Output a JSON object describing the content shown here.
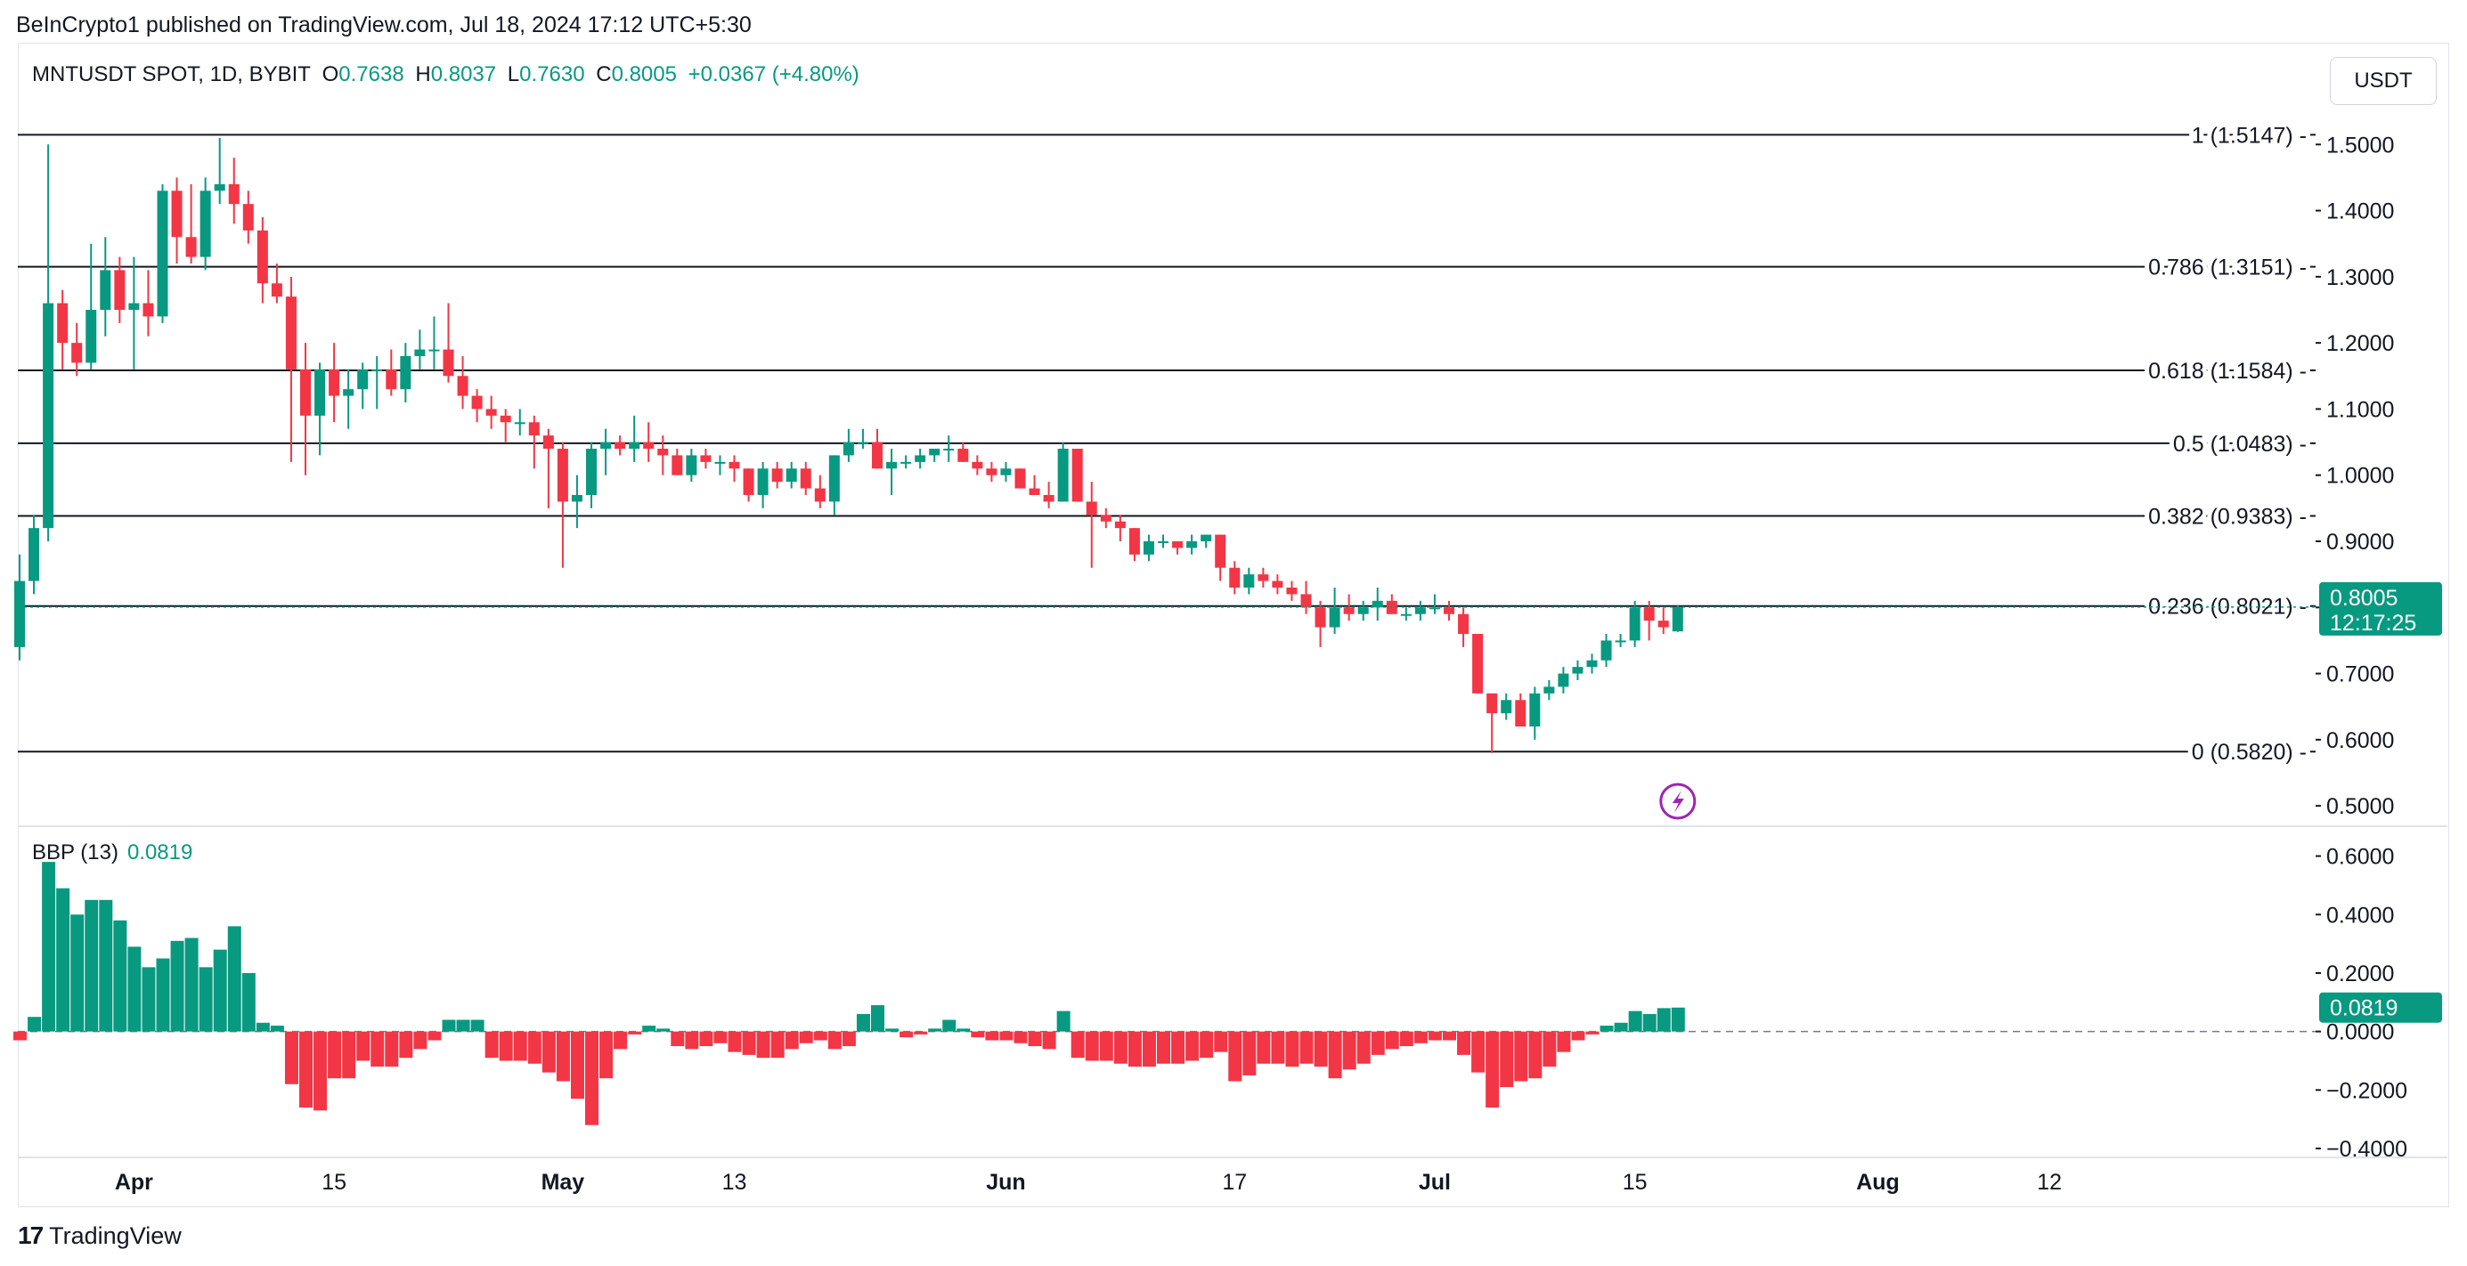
{
  "header": {
    "published": "BeInCrypto1 published on TradingView.com, Jul 18, 2024 17:12 UTC+5:30"
  },
  "currency_button": "USDT",
  "legend": {
    "symbol": "MNTUSDT SPOT, 1D, BYBIT",
    "o_label": "O",
    "o_value": "0.7638",
    "h_label": "H",
    "h_value": "0.8037",
    "l_label": "L",
    "l_value": "0.7630",
    "c_label": "C",
    "c_value": "0.8005",
    "change": "+0.0367 (+4.80%)"
  },
  "indicator_legend": {
    "name": "BBP (13)",
    "value": "0.0819"
  },
  "footer": {
    "brand": "TradingView"
  },
  "colors": {
    "up": "#089981",
    "down": "#f23645",
    "line": "#131722",
    "bolt": "#9c27b0"
  },
  "chart_data": [
    {
      "type": "candlestick",
      "symbol": "MNTUSDT",
      "interval": "1D",
      "exchange": "BYBIT",
      "ylim": [
        0.48,
        1.53
      ],
      "y_ticks": [
        "1.5000",
        "1.4000",
        "1.3000",
        "1.2000",
        "1.1000",
        "1.0000",
        "0.9000",
        "0.8000",
        "0.7000",
        "0.6000",
        "0.5000"
      ],
      "x_ticks": [
        "Apr",
        "15",
        "May",
        "13",
        "Jun",
        "17",
        "Jul",
        "15",
        "Aug",
        "12"
      ],
      "fib_levels": [
        {
          "ratio": "1",
          "price": 1.5147,
          "label": "1 (1.5147)"
        },
        {
          "ratio": "0.786",
          "price": 1.3151,
          "label": "0.786 (1.3151)"
        },
        {
          "ratio": "0.618",
          "price": 1.1584,
          "label": "0.618 (1.1584)"
        },
        {
          "ratio": "0.5",
          "price": 1.0483,
          "label": "0.5 (1.0483)"
        },
        {
          "ratio": "0.382",
          "price": 0.9383,
          "label": "0.382 (0.9383)"
        },
        {
          "ratio": "0.236",
          "price": 0.8021,
          "label": "0.236 (0.8021)"
        },
        {
          "ratio": "0",
          "price": 0.582,
          "label": "0 (0.5820)"
        }
      ],
      "last_price": "0.8005",
      "countdown": "12:17:25",
      "candles_ohlc": [
        [
          0.74,
          0.88,
          0.72,
          0.84
        ],
        [
          0.84,
          0.94,
          0.82,
          0.92
        ],
        [
          0.92,
          1.5,
          0.9,
          1.26
        ],
        [
          1.26,
          1.28,
          1.16,
          1.2
        ],
        [
          1.2,
          1.23,
          1.15,
          1.17
        ],
        [
          1.17,
          1.35,
          1.16,
          1.25
        ],
        [
          1.25,
          1.36,
          1.21,
          1.31
        ],
        [
          1.31,
          1.33,
          1.23,
          1.25
        ],
        [
          1.25,
          1.33,
          1.16,
          1.26
        ],
        [
          1.26,
          1.31,
          1.21,
          1.24
        ],
        [
          1.24,
          1.44,
          1.23,
          1.43
        ],
        [
          1.43,
          1.45,
          1.32,
          1.36
        ],
        [
          1.36,
          1.44,
          1.32,
          1.33
        ],
        [
          1.33,
          1.45,
          1.31,
          1.43
        ],
        [
          1.43,
          1.51,
          1.41,
          1.44
        ],
        [
          1.44,
          1.48,
          1.38,
          1.41
        ],
        [
          1.41,
          1.43,
          1.35,
          1.37
        ],
        [
          1.37,
          1.39,
          1.26,
          1.29
        ],
        [
          1.29,
          1.32,
          1.26,
          1.27
        ],
        [
          1.27,
          1.3,
          1.02,
          1.16
        ],
        [
          1.16,
          1.2,
          1.0,
          1.09
        ],
        [
          1.09,
          1.17,
          1.03,
          1.16
        ],
        [
          1.16,
          1.2,
          1.08,
          1.12
        ],
        [
          1.12,
          1.16,
          1.07,
          1.13
        ],
        [
          1.13,
          1.17,
          1.1,
          1.16
        ],
        [
          1.16,
          1.18,
          1.1,
          1.16
        ],
        [
          1.16,
          1.19,
          1.12,
          1.13
        ],
        [
          1.13,
          1.2,
          1.11,
          1.18
        ],
        [
          1.18,
          1.22,
          1.16,
          1.19
        ],
        [
          1.19,
          1.24,
          1.16,
          1.19
        ],
        [
          1.19,
          1.26,
          1.14,
          1.15
        ],
        [
          1.15,
          1.18,
          1.1,
          1.12
        ],
        [
          1.12,
          1.13,
          1.08,
          1.1
        ],
        [
          1.1,
          1.12,
          1.07,
          1.09
        ],
        [
          1.09,
          1.1,
          1.05,
          1.08
        ],
        [
          1.08,
          1.1,
          1.06,
          1.08
        ],
        [
          1.08,
          1.09,
          1.01,
          1.06
        ],
        [
          1.06,
          1.07,
          0.95,
          1.04
        ],
        [
          1.04,
          1.05,
          0.86,
          0.96
        ],
        [
          0.96,
          1.0,
          0.92,
          0.97
        ],
        [
          0.97,
          1.05,
          0.95,
          1.04
        ],
        [
          1.04,
          1.07,
          1.0,
          1.05
        ],
        [
          1.05,
          1.06,
          1.03,
          1.04
        ],
        [
          1.04,
          1.09,
          1.02,
          1.05
        ],
        [
          1.05,
          1.08,
          1.02,
          1.04
        ],
        [
          1.04,
          1.06,
          1.0,
          1.03
        ],
        [
          1.03,
          1.04,
          1.0,
          1.0
        ],
        [
          1.0,
          1.04,
          0.99,
          1.03
        ],
        [
          1.03,
          1.04,
          1.01,
          1.02
        ],
        [
          1.02,
          1.03,
          1.0,
          1.02
        ],
        [
          1.02,
          1.03,
          0.99,
          1.01
        ],
        [
          1.01,
          1.01,
          0.96,
          0.97
        ],
        [
          0.97,
          1.02,
          0.95,
          1.01
        ],
        [
          1.01,
          1.02,
          0.98,
          0.99
        ],
        [
          0.99,
          1.02,
          0.98,
          1.01
        ],
        [
          1.01,
          1.02,
          0.97,
          0.98
        ],
        [
          0.98,
          1.0,
          0.95,
          0.96
        ],
        [
          0.96,
          1.03,
          0.94,
          1.03
        ],
        [
          1.03,
          1.07,
          1.02,
          1.05
        ],
        [
          1.05,
          1.07,
          1.04,
          1.05
        ],
        [
          1.05,
          1.07,
          1.01,
          1.01
        ],
        [
          1.01,
          1.04,
          0.97,
          1.02
        ],
        [
          1.02,
          1.03,
          1.01,
          1.02
        ],
        [
          1.02,
          1.04,
          1.01,
          1.03
        ],
        [
          1.03,
          1.04,
          1.02,
          1.04
        ],
        [
          1.04,
          1.06,
          1.02,
          1.04
        ],
        [
          1.04,
          1.05,
          1.02,
          1.02
        ],
        [
          1.02,
          1.03,
          1.0,
          1.01
        ],
        [
          1.01,
          1.02,
          0.99,
          1.0
        ],
        [
          1.0,
          1.02,
          0.99,
          1.01
        ],
        [
          1.01,
          1.01,
          0.98,
          0.98
        ],
        [
          0.98,
          1.0,
          0.97,
          0.97
        ],
        [
          0.97,
          0.99,
          0.95,
          0.96
        ],
        [
          0.96,
          1.05,
          0.96,
          1.04
        ],
        [
          1.04,
          1.04,
          0.96,
          0.96
        ],
        [
          0.96,
          0.99,
          0.86,
          0.94
        ],
        [
          0.94,
          0.95,
          0.92,
          0.93
        ],
        [
          0.93,
          0.94,
          0.9,
          0.92
        ],
        [
          0.92,
          0.92,
          0.87,
          0.88
        ],
        [
          0.88,
          0.91,
          0.87,
          0.9
        ],
        [
          0.9,
          0.91,
          0.89,
          0.9
        ],
        [
          0.9,
          0.9,
          0.88,
          0.89
        ],
        [
          0.89,
          0.91,
          0.88,
          0.9
        ],
        [
          0.9,
          0.91,
          0.89,
          0.91
        ],
        [
          0.91,
          0.91,
          0.84,
          0.86
        ],
        [
          0.86,
          0.87,
          0.82,
          0.83
        ],
        [
          0.83,
          0.86,
          0.82,
          0.85
        ],
        [
          0.85,
          0.86,
          0.83,
          0.84
        ],
        [
          0.84,
          0.85,
          0.82,
          0.83
        ],
        [
          0.83,
          0.84,
          0.81,
          0.82
        ],
        [
          0.82,
          0.84,
          0.79,
          0.8
        ],
        [
          0.8,
          0.81,
          0.74,
          0.77
        ],
        [
          0.77,
          0.83,
          0.76,
          0.8
        ],
        [
          0.8,
          0.82,
          0.78,
          0.79
        ],
        [
          0.79,
          0.81,
          0.78,
          0.8
        ],
        [
          0.8,
          0.83,
          0.78,
          0.81
        ],
        [
          0.81,
          0.82,
          0.79,
          0.79
        ],
        [
          0.79,
          0.8,
          0.78,
          0.79
        ],
        [
          0.79,
          0.81,
          0.78,
          0.8
        ],
        [
          0.8,
          0.82,
          0.79,
          0.8
        ],
        [
          0.8,
          0.81,
          0.78,
          0.79
        ],
        [
          0.79,
          0.8,
          0.74,
          0.76
        ],
        [
          0.76,
          0.76,
          0.67,
          0.67
        ],
        [
          0.67,
          0.67,
          0.58,
          0.64
        ],
        [
          0.64,
          0.67,
          0.63,
          0.66
        ],
        [
          0.66,
          0.67,
          0.62,
          0.62
        ],
        [
          0.62,
          0.68,
          0.6,
          0.67
        ],
        [
          0.67,
          0.69,
          0.66,
          0.68
        ],
        [
          0.68,
          0.71,
          0.67,
          0.7
        ],
        [
          0.7,
          0.72,
          0.69,
          0.71
        ],
        [
          0.71,
          0.73,
          0.7,
          0.72
        ],
        [
          0.72,
          0.76,
          0.71,
          0.75
        ],
        [
          0.75,
          0.76,
          0.74,
          0.75
        ],
        [
          0.75,
          0.81,
          0.74,
          0.8
        ],
        [
          0.8,
          0.81,
          0.75,
          0.78
        ],
        [
          0.78,
          0.8,
          0.76,
          0.77
        ],
        [
          0.7638,
          0.8037,
          0.763,
          0.8005
        ]
      ]
    },
    {
      "type": "bar",
      "name": "BBP (13)",
      "ylim": [
        -0.4,
        0.62
      ],
      "y_ticks": [
        "0.6000",
        "0.4000",
        "0.2000",
        "0.0000",
        "−0.2000",
        "−0.4000"
      ],
      "last_value": "0.0819",
      "values": [
        -0.03,
        0.05,
        0.58,
        0.49,
        0.4,
        0.45,
        0.45,
        0.38,
        0.29,
        0.22,
        0.25,
        0.31,
        0.32,
        0.22,
        0.28,
        0.36,
        0.2,
        0.03,
        0.02,
        -0.18,
        -0.26,
        -0.27,
        -0.16,
        -0.16,
        -0.1,
        -0.12,
        -0.12,
        -0.09,
        -0.06,
        -0.03,
        0.04,
        0.04,
        0.04,
        -0.09,
        -0.1,
        -0.1,
        -0.11,
        -0.14,
        -0.17,
        -0.23,
        -0.32,
        -0.16,
        -0.06,
        -0.01,
        0.02,
        0.01,
        -0.05,
        -0.06,
        -0.05,
        -0.04,
        -0.07,
        -0.08,
        -0.09,
        -0.09,
        -0.06,
        -0.04,
        -0.03,
        -0.06,
        -0.05,
        0.06,
        0.09,
        0.01,
        -0.02,
        -0.01,
        0.01,
        0.04,
        0.01,
        -0.02,
        -0.03,
        -0.03,
        -0.04,
        -0.05,
        -0.06,
        0.07,
        -0.09,
        -0.1,
        -0.1,
        -0.11,
        -0.12,
        -0.12,
        -0.11,
        -0.11,
        -0.1,
        -0.09,
        -0.07,
        -0.17,
        -0.15,
        -0.11,
        -0.11,
        -0.12,
        -0.11,
        -0.12,
        -0.16,
        -0.13,
        -0.11,
        -0.08,
        -0.06,
        -0.05,
        -0.04,
        -0.03,
        -0.03,
        -0.08,
        -0.14,
        -0.26,
        -0.19,
        -0.17,
        -0.16,
        -0.12,
        -0.07,
        -0.03,
        -0.01,
        0.02,
        0.03,
        0.07,
        0.06,
        0.08,
        0.0819
      ]
    }
  ]
}
